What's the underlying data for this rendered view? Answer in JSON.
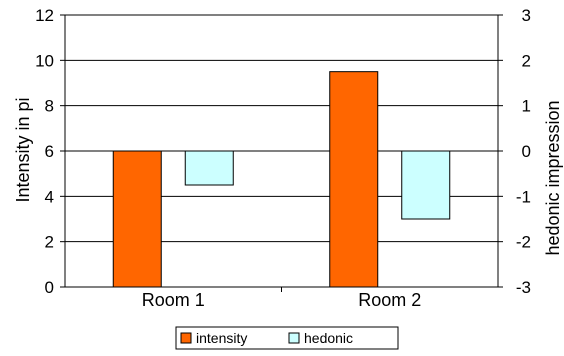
{
  "chart_data": {
    "type": "bar",
    "categories": [
      "Room 1",
      "Room 2"
    ],
    "series": [
      {
        "name": "intensity",
        "axis": "left",
        "values": [
          6,
          9.5
        ],
        "color": "#ff6600"
      },
      {
        "name": "hedonic",
        "axis": "right",
        "values": [
          -0.75,
          -1.5
        ],
        "color": "#ccffff"
      }
    ],
    "ylabel_left": "Intensity in pi",
    "ylabel_right": "hedonic impression",
    "ylim_left": [
      0,
      12
    ],
    "ylim_right": [
      -3,
      3
    ],
    "yticks_left": [
      "0",
      "2",
      "4",
      "6",
      "8",
      "10",
      "12"
    ],
    "yticks_right": [
      "-3",
      "-2",
      "-1",
      "0",
      "1",
      "2",
      "3"
    ],
    "grid": true,
    "legend_position": "bottom"
  }
}
